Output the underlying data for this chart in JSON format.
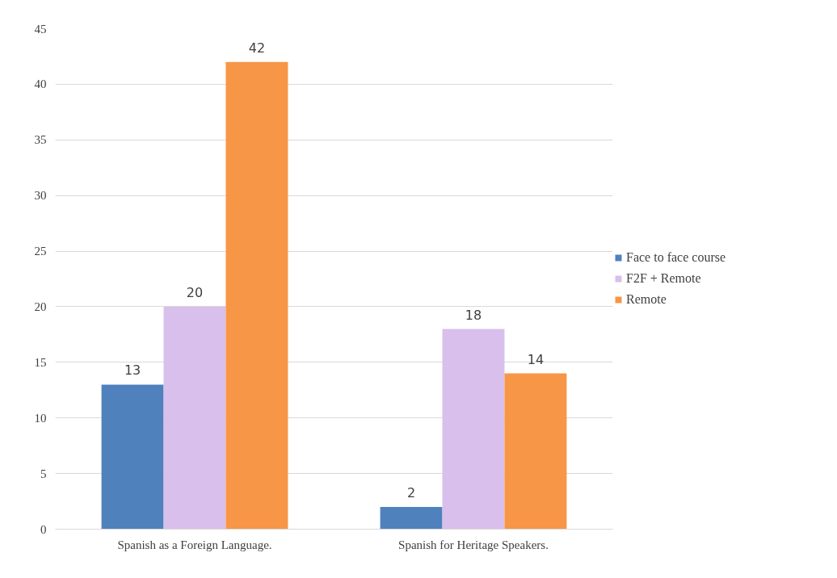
{
  "chart_data": {
    "type": "bar",
    "categories": [
      "Spanish as a Foreign Language.",
      "Spanish for Heritage Speakers."
    ],
    "series": [
      {
        "name": "Face to face course",
        "color": "#4f81bd",
        "values": [
          13,
          2
        ]
      },
      {
        "name": "F2F + Remote",
        "color": "#d9bfeb",
        "values": [
          20,
          18
        ]
      },
      {
        "name": "Remote",
        "color": "#f79646",
        "values": [
          42,
          14
        ]
      }
    ],
    "ylim": [
      0,
      45
    ],
    "yticks": [
      0,
      5,
      10,
      15,
      20,
      25,
      30,
      35,
      40,
      45
    ],
    "grid": "y",
    "legend": "right",
    "data_labels": true
  }
}
